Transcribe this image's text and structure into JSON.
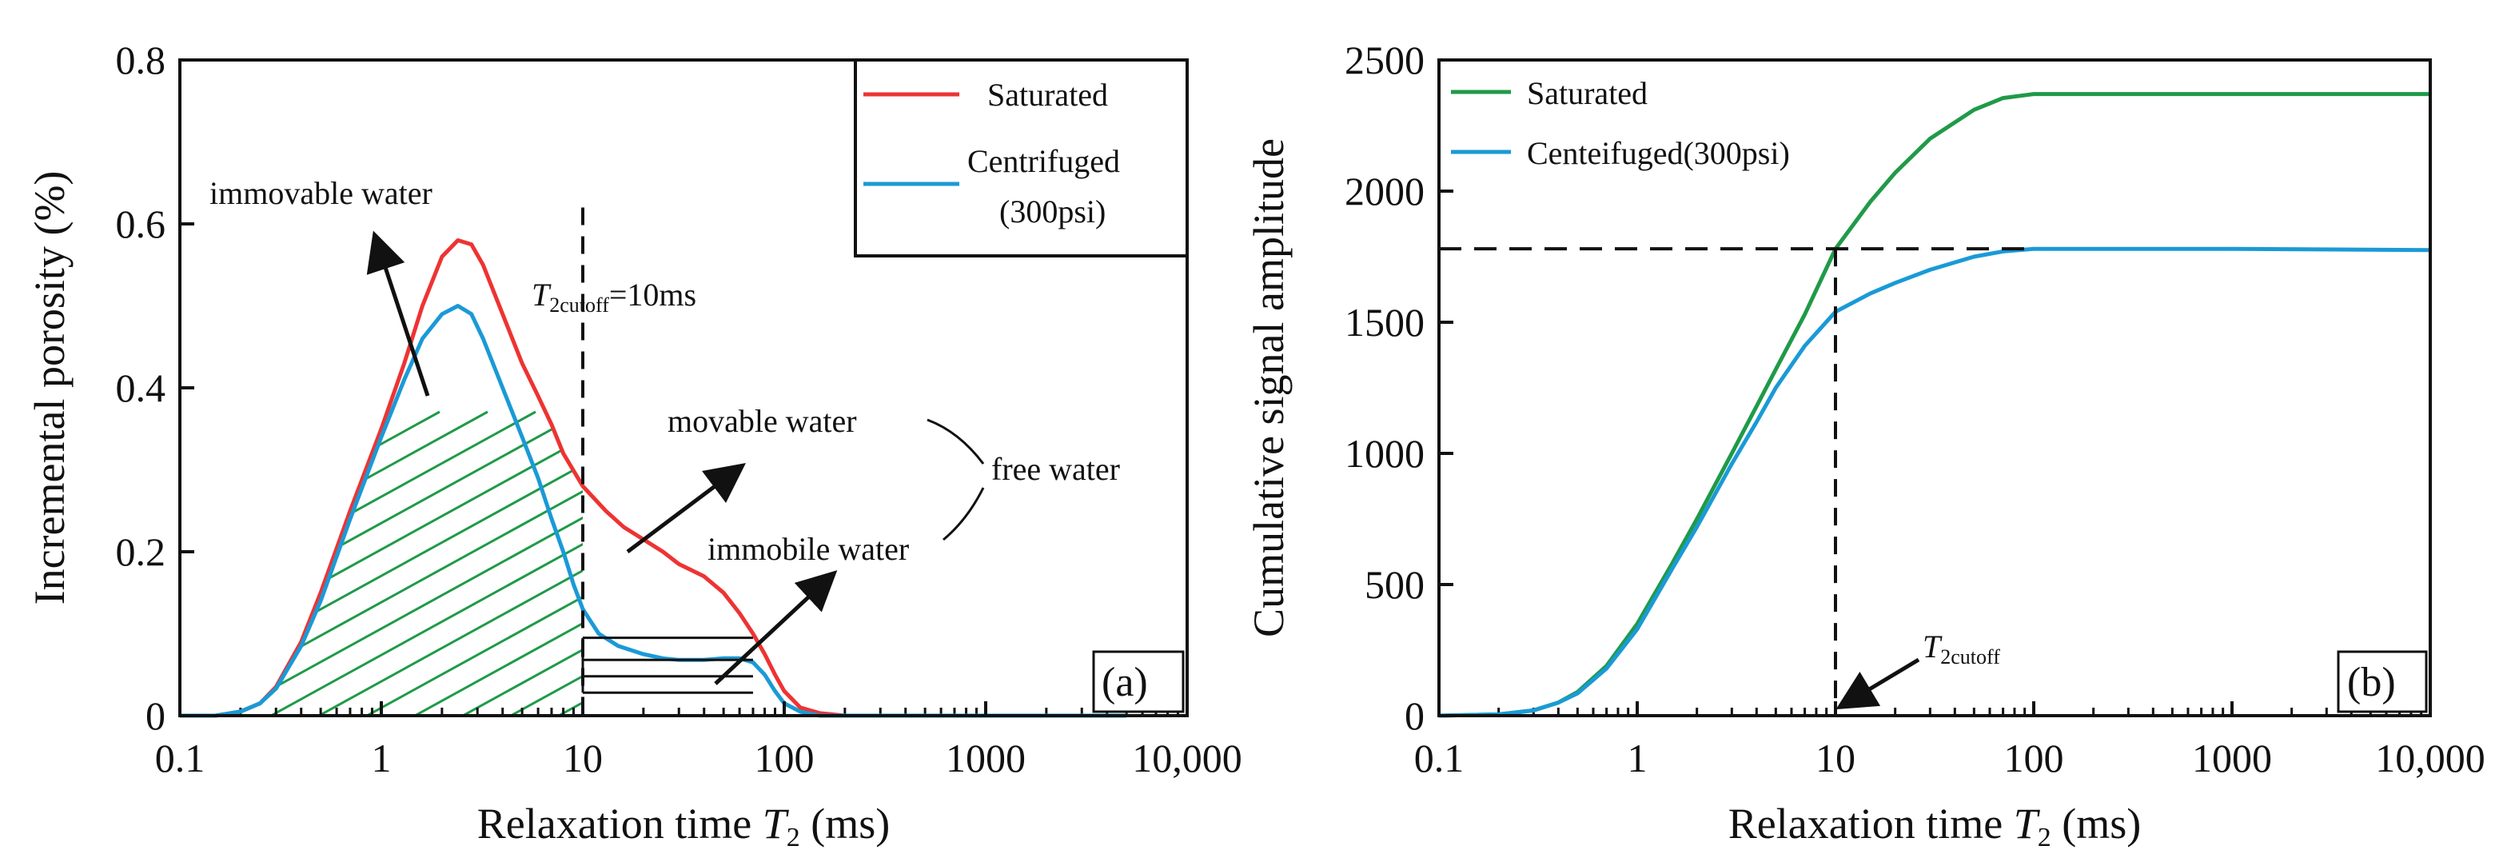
{
  "chart_data": [
    {
      "type": "line",
      "panel": "(a)",
      "xscale": "log",
      "xlim": [
        0.1,
        10000
      ],
      "ylim": [
        0,
        0.8
      ],
      "xlabel_prefix": "Relaxation time ",
      "xlabel_var": "T",
      "xlabel_sub": "2",
      "xlabel_suffix": " (ms)",
      "ylabel": "Incremental porosity (%)",
      "x_tick_values": [
        0.1,
        1,
        10,
        100,
        1000,
        10000
      ],
      "x_tick_labels": [
        "0.1",
        "1",
        "10",
        "100",
        "1000",
        "10,000"
      ],
      "y_tick_values": [
        0,
        0.2,
        0.4,
        0.6,
        0.8
      ],
      "y_tick_labels": [
        "0",
        "0.2",
        "0.4",
        "0.6",
        "0.8"
      ],
      "legend_position": "top-right",
      "series": [
        {
          "name": "Saturated",
          "legend_label": "Saturated",
          "color": "#ee3333",
          "x": [
            0.1,
            0.15,
            0.2,
            0.25,
            0.3,
            0.4,
            0.5,
            0.7,
            1,
            1.3,
            1.6,
            2,
            2.4,
            2.8,
            3.2,
            4,
            5,
            6,
            7,
            8,
            10,
            13,
            16,
            20,
            25,
            30,
            40,
            50,
            60,
            70,
            80,
            90,
            100,
            120,
            150,
            200,
            300,
            500,
            1000,
            5000
          ],
          "values": [
            0,
            0,
            0.005,
            0.015,
            0.035,
            0.09,
            0.15,
            0.25,
            0.35,
            0.43,
            0.5,
            0.56,
            0.58,
            0.575,
            0.55,
            0.49,
            0.43,
            0.39,
            0.355,
            0.32,
            0.28,
            0.25,
            0.23,
            0.215,
            0.2,
            0.185,
            0.17,
            0.15,
            0.125,
            0.1,
            0.075,
            0.05,
            0.03,
            0.01,
            0.003,
            0,
            0,
            0,
            0,
            0
          ]
        },
        {
          "name": "Centrifuged (300psi)",
          "legend_label_line1": "Centrifuged",
          "legend_label_line2": "(300psi)",
          "color": "#1a9ad6",
          "x": [
            0.1,
            0.15,
            0.2,
            0.25,
            0.3,
            0.4,
            0.5,
            0.7,
            1,
            1.3,
            1.6,
            2,
            2.4,
            2.8,
            3.2,
            4,
            5,
            6,
            7,
            8,
            9,
            10,
            12,
            15,
            20,
            25,
            30,
            40,
            50,
            60,
            70,
            80,
            90,
            100,
            120,
            150,
            200,
            500,
            5000
          ],
          "values": [
            0,
            0,
            0.005,
            0.015,
            0.033,
            0.085,
            0.14,
            0.24,
            0.34,
            0.41,
            0.46,
            0.49,
            0.5,
            0.49,
            0.46,
            0.4,
            0.34,
            0.29,
            0.24,
            0.2,
            0.16,
            0.13,
            0.1,
            0.085,
            0.075,
            0.07,
            0.068,
            0.068,
            0.07,
            0.07,
            0.065,
            0.05,
            0.03,
            0.015,
            0.005,
            0,
            0,
            0,
            0
          ]
        }
      ],
      "t2_cutoff": 10,
      "cutoff_label_var": "T",
      "cutoff_label_sub": "2cutoff",
      "cutoff_label_suffix": "=10ms",
      "annotations": {
        "immovable_water": "immovable water",
        "movable_water": "movable water",
        "free_water": "free water",
        "immobile_water": "immobile water"
      }
    },
    {
      "type": "line",
      "panel": "(b)",
      "xscale": "log",
      "xlim": [
        0.1,
        10000
      ],
      "ylim": [
        0,
        2500
      ],
      "xlabel_prefix": "Relaxation time ",
      "xlabel_var": "T",
      "xlabel_sub": "2",
      "xlabel_suffix": " (ms)",
      "ylabel": "Cumulative signal amplitude",
      "x_tick_values": [
        0.1,
        1,
        10,
        100,
        1000,
        10000
      ],
      "x_tick_labels": [
        "0.1",
        "1",
        "10",
        "100",
        "1000",
        "10,000"
      ],
      "y_tick_values": [
        0,
        500,
        1000,
        1500,
        2000,
        2500
      ],
      "y_tick_labels": [
        "0",
        "500",
        "1000",
        "1500",
        "2000",
        "2500"
      ],
      "legend_position": "top-left",
      "series": [
        {
          "name": "Saturated",
          "legend_label": "Saturated",
          "color": "#1f9a48",
          "x": [
            0.1,
            0.2,
            0.3,
            0.4,
            0.5,
            0.7,
            1,
            1.5,
            2,
            3,
            4,
            5,
            7,
            10,
            15,
            20,
            30,
            50,
            70,
            100,
            150,
            300,
            1000,
            10000
          ],
          "values": [
            0,
            5,
            20,
            50,
            90,
            190,
            350,
            580,
            750,
            1000,
            1180,
            1320,
            1530,
            1780,
            1960,
            2070,
            2200,
            2310,
            2355,
            2370,
            2370,
            2370,
            2370,
            2370
          ]
        },
        {
          "name": "Centeifuged(300psi)",
          "legend_label": "Centeifuged(300psi)",
          "color": "#1a9ad6",
          "x": [
            0.1,
            0.2,
            0.3,
            0.4,
            0.5,
            0.7,
            1,
            1.5,
            2,
            3,
            4,
            5,
            7,
            10,
            15,
            20,
            30,
            50,
            70,
            100,
            150,
            300,
            1000,
            10000
          ],
          "values": [
            0,
            5,
            20,
            50,
            85,
            180,
            330,
            560,
            720,
            960,
            1120,
            1250,
            1410,
            1540,
            1610,
            1650,
            1700,
            1750,
            1770,
            1780,
            1780,
            1780,
            1780,
            1775
          ]
        }
      ],
      "t2_cutoff": 10,
      "dashed_level": 1780,
      "dashed_level_end_x": 100,
      "cutoff_label_var": "T",
      "cutoff_label_sub": "2cutoff"
    }
  ]
}
